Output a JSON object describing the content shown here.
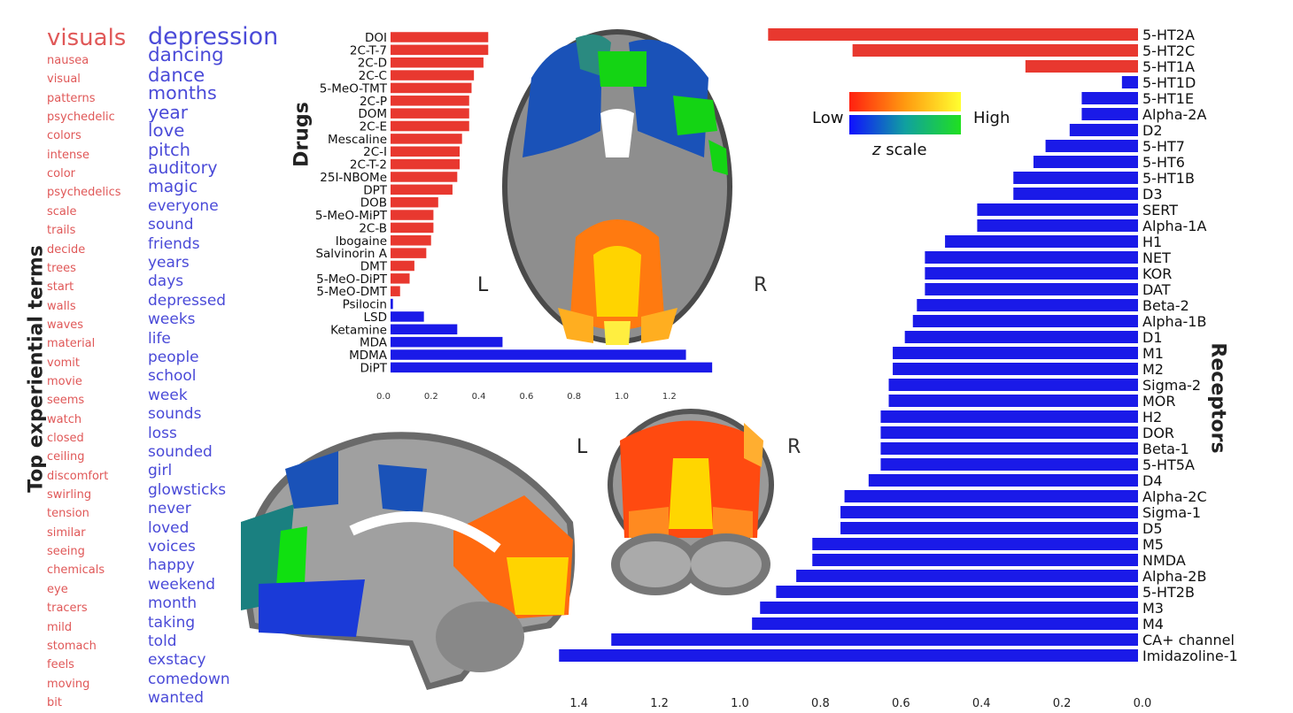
{
  "side_labels": {
    "terms": "Top experiential terms",
    "drugs": "Drugs",
    "receptors": "Receptors"
  },
  "colorbar": {
    "low": "Low",
    "high": "High",
    "z": "z",
    "scale": "scale"
  },
  "brain_labels": {
    "axial_left": "L",
    "axial_right": "R",
    "coronal_left": "L",
    "coronal_right": "R"
  },
  "terms": {
    "red": [
      "visuals",
      "nausea",
      "visual",
      "patterns",
      "psychedelic",
      "colors",
      "intense",
      "color",
      "psychedelics",
      "scale",
      "trails",
      "decide",
      "trees",
      "start",
      "walls",
      "waves",
      "material",
      "vomit",
      "movie",
      "seems",
      "watch",
      "closed",
      "ceiling",
      "discomfort",
      "swirling",
      "tension",
      "similar",
      "seeing",
      "chemicals",
      "eye",
      "tracers",
      "mild",
      "stomach",
      "feels",
      "moving",
      "bit"
    ],
    "blue": [
      "depression",
      "dancing",
      "dance",
      "months",
      "year",
      "love",
      "pitch",
      "auditory",
      "magic",
      "everyone",
      "sound",
      "friends",
      "years",
      "days",
      "depressed",
      "weeks",
      "life",
      "people",
      "school",
      "week",
      "sounds",
      "loss",
      "sounded",
      "girl",
      "glowsticks",
      "never",
      "loved",
      "voices",
      "happy",
      "weekend",
      "month",
      "taking",
      "told",
      "exstacy",
      "comedown",
      "wanted"
    ]
  },
  "colors": {
    "red": "#e8382f",
    "blue": "#1a1ae8",
    "red_text": "#e05858",
    "blue_text": "#4a4ad8"
  },
  "chart_data": [
    {
      "type": "bar",
      "orientation": "horizontal",
      "ylabel": "Drugs",
      "xlim": [
        0,
        1.4
      ],
      "x_ticks": [
        "0.0",
        "0.2",
        "0.4",
        "0.6",
        "0.8",
        "1.0",
        "1.2"
      ],
      "categories": [
        "DOI",
        "2C-T-7",
        "2C-D",
        "2C-C",
        "5-MeO-TMT",
        "2C-P",
        "DOM",
        "2C-E",
        "Mescaline",
        "2C-I",
        "2C-T-2",
        "25I-NBOMe",
        "DPT",
        "DOB",
        "5-MeO-MiPT",
        "2C-B",
        "Ibogaine",
        "Salvinorin A",
        "DMT",
        "5-MeO-DiPT",
        "5-MeO-DMT",
        "Psilocin",
        "LSD",
        "Ketamine",
        "MDA",
        "MDMA",
        "DiPT"
      ],
      "values": [
        0.41,
        0.41,
        0.39,
        0.35,
        0.34,
        0.33,
        0.33,
        0.33,
        0.3,
        0.29,
        0.29,
        0.28,
        0.26,
        0.2,
        0.18,
        0.18,
        0.17,
        0.15,
        0.1,
        0.08,
        0.04,
        0.01,
        0.14,
        0.28,
        0.47,
        1.24,
        1.35
      ],
      "colors_by_sign": [
        "red",
        "red",
        "red",
        "red",
        "red",
        "red",
        "red",
        "red",
        "red",
        "red",
        "red",
        "red",
        "red",
        "red",
        "red",
        "red",
        "red",
        "red",
        "red",
        "red",
        "red",
        "blue",
        "blue",
        "blue",
        "blue",
        "blue",
        "blue"
      ]
    },
    {
      "type": "bar",
      "orientation": "horizontal",
      "ylabel": "Receptors",
      "x_reversed": true,
      "xlim": [
        0,
        1.45
      ],
      "x_ticks": [
        "1.4",
        "1.2",
        "1.0",
        "0.8",
        "0.6",
        "0.4",
        "0.2",
        "0.0"
      ],
      "categories": [
        "5-HT2A",
        "5-HT2C",
        "5-HT1A",
        "5-HT1D",
        "5-HT1E",
        "Alpha-2A",
        "D2",
        "5-HT7",
        "5-HT6",
        "5-HT1B",
        "D3",
        "SERT",
        "Alpha-1A",
        "H1",
        "NET",
        "KOR",
        "DAT",
        "Beta-2",
        "Alpha-1B",
        "D1",
        "M1",
        "M2",
        "Sigma-2",
        "MOR",
        "H2",
        "DOR",
        "Beta-1",
        "5-HT5A",
        "D4",
        "Alpha-2C",
        "Sigma-1",
        "D5",
        "M5",
        "NMDA",
        "Alpha-2B",
        "5-HT2B",
        "M3",
        "M4",
        "CA+ channel",
        "Imidazoline-1"
      ],
      "values": [
        0.92,
        0.71,
        0.28,
        0.04,
        0.14,
        0.14,
        0.17,
        0.23,
        0.26,
        0.31,
        0.31,
        0.4,
        0.4,
        0.48,
        0.53,
        0.53,
        0.53,
        0.55,
        0.56,
        0.58,
        0.61,
        0.61,
        0.62,
        0.62,
        0.64,
        0.64,
        0.64,
        0.64,
        0.67,
        0.73,
        0.74,
        0.74,
        0.81,
        0.81,
        0.85,
        0.9,
        0.94,
        0.96,
        1.31,
        1.44
      ],
      "colors_by_sign": [
        "red",
        "red",
        "red",
        "blue",
        "blue",
        "blue",
        "blue",
        "blue",
        "blue",
        "blue",
        "blue",
        "blue",
        "blue",
        "blue",
        "blue",
        "blue",
        "blue",
        "blue",
        "blue",
        "blue",
        "blue",
        "blue",
        "blue",
        "blue",
        "blue",
        "blue",
        "blue",
        "blue",
        "blue",
        "blue",
        "blue",
        "blue",
        "blue",
        "blue",
        "blue",
        "blue",
        "blue",
        "blue",
        "blue",
        "blue"
      ]
    }
  ]
}
